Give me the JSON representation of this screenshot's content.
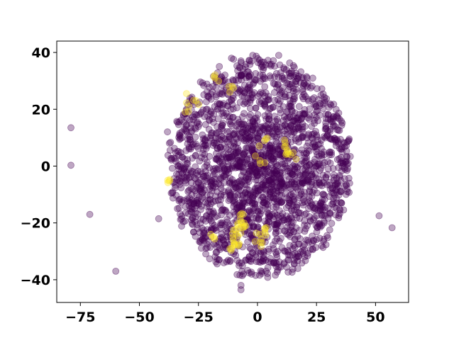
{
  "chart_data": {
    "type": "scatter",
    "title": "",
    "xlabel": "",
    "ylabel": "",
    "xlim": [
      -85,
      64
    ],
    "ylim": [
      -48,
      44
    ],
    "xticks": [
      -75,
      -50,
      -25,
      0,
      25,
      50
    ],
    "yticks": [
      -40,
      -20,
      0,
      20,
      40
    ],
    "xtick_labels": [
      "−75",
      "−50",
      "−25",
      "0",
      "25",
      "50"
    ],
    "ytick_labels": [
      "−40",
      "−20",
      "0",
      "20",
      "40"
    ],
    "grid": false,
    "legend": "none",
    "colors": {
      "class_0": "#440154",
      "class_1": "#fde725"
    },
    "marker_alpha": 0.35,
    "description": "Dense circular cluster of roughly 2000 semi-transparent points centred near (0, 0) with radius about 40, mostly dark purple (class 0) with small yellow (class 1) sub-clusters; a few isolated outliers on the left and right.",
    "series": [
      {
        "name": "",
        "class": 0,
        "points": [
          [
            -79,
            13.5
          ],
          [
            -79,
            0.3
          ],
          [
            -71,
            -17
          ],
          [
            -60,
            -37
          ],
          [
            51.5,
            -17.5
          ],
          [
            57,
            -21.7
          ],
          [
            -32,
            12
          ],
          [
            -33,
            11
          ],
          [
            -31,
            13
          ],
          [
            -30,
            12
          ],
          [
            -32,
            10
          ],
          [
            -10,
            5
          ],
          [
            -12,
            3
          ],
          [
            -8,
            0
          ],
          [
            5,
            -5
          ],
          [
            3,
            -8
          ],
          [
            0,
            -3
          ],
          [
            -7,
            -43.5
          ],
          [
            -7,
            -42
          ],
          [
            -2,
            39
          ],
          [
            9,
            39
          ],
          [
            -11,
            38
          ]
        ]
      },
      {
        "name": "",
        "class": 1,
        "points": [
          [
            -18,
            31
          ],
          [
            -7,
            -20
          ],
          [
            -6,
            -17
          ],
          [
            -5,
            -21
          ],
          [
            -8,
            -22
          ],
          [
            -9,
            -24
          ],
          [
            -10,
            -27
          ],
          [
            -11,
            -29
          ],
          [
            -8,
            -28
          ],
          [
            1,
            -24
          ],
          [
            2,
            -27
          ],
          [
            3,
            -22
          ],
          [
            13,
            5
          ],
          [
            12,
            7
          ],
          [
            14,
            4
          ],
          [
            3,
            9
          ],
          [
            1,
            2
          ],
          [
            -19,
            -25
          ],
          [
            -26,
            23
          ],
          [
            -29,
            21
          ],
          [
            -38,
            -5
          ],
          [
            -12,
            28
          ]
        ]
      }
    ]
  }
}
